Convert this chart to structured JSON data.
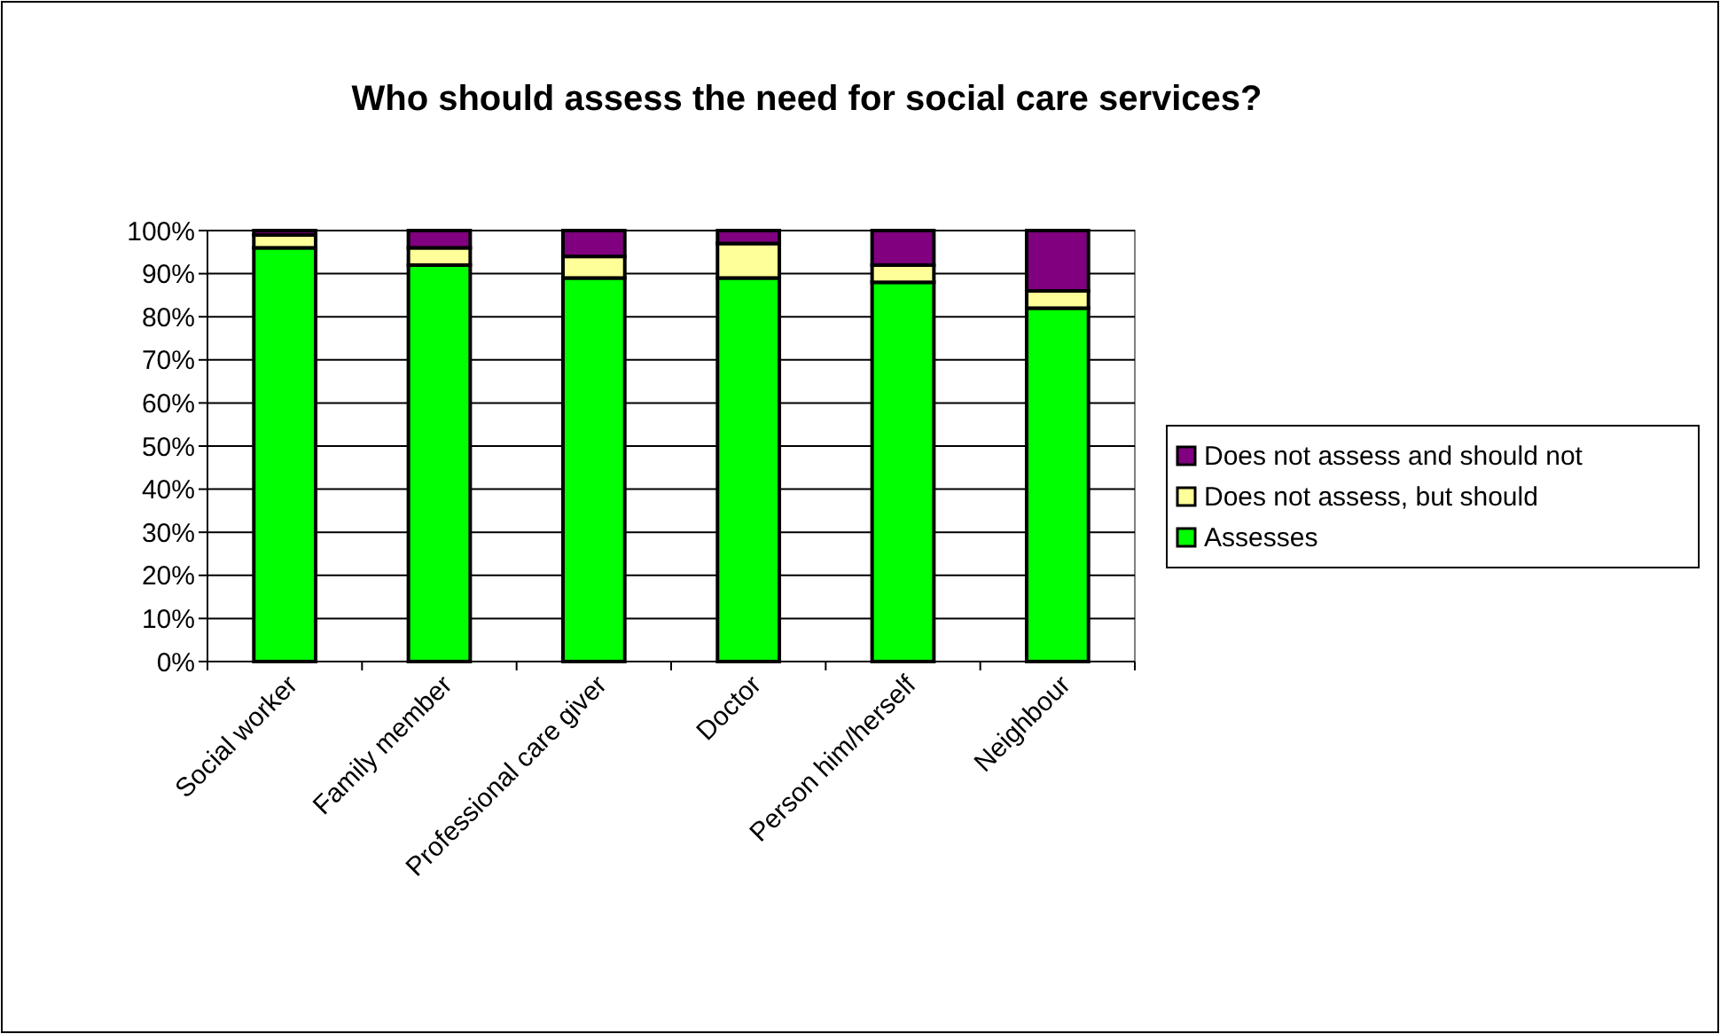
{
  "chart_data": {
    "type": "bar",
    "title": "Who should assess the need for social care services?",
    "stacked": true,
    "categories": [
      "Social worker",
      "Family member",
      "Professional care giver",
      "Doctor",
      "Person him/herself",
      "Neighbour"
    ],
    "series": [
      {
        "name": "Assesses",
        "color": "#00ff00",
        "values": [
          96,
          92,
          89,
          89,
          88,
          82
        ]
      },
      {
        "name": "Does not assess, but should",
        "color": "#ffff99",
        "values": [
          3,
          4,
          5,
          8,
          4,
          4
        ]
      },
      {
        "name": "Does not assess and should not",
        "color": "#800080",
        "values": [
          1,
          4,
          6,
          3,
          8,
          14
        ]
      }
    ],
    "ylim": [
      0,
      100
    ],
    "yticks": [
      {
        "value": 0,
        "label": "0%"
      },
      {
        "value": 10,
        "label": "10%"
      },
      {
        "value": 20,
        "label": "20%"
      },
      {
        "value": 30,
        "label": "30%"
      },
      {
        "value": 40,
        "label": "40%"
      },
      {
        "value": 50,
        "label": "50%"
      },
      {
        "value": 60,
        "label": "60%"
      },
      {
        "value": 70,
        "label": "70%"
      },
      {
        "value": 80,
        "label": "80%"
      },
      {
        "value": 90,
        "label": "90%"
      },
      {
        "value": 100,
        "label": "100%"
      }
    ],
    "grid": "y",
    "legend": "right"
  }
}
